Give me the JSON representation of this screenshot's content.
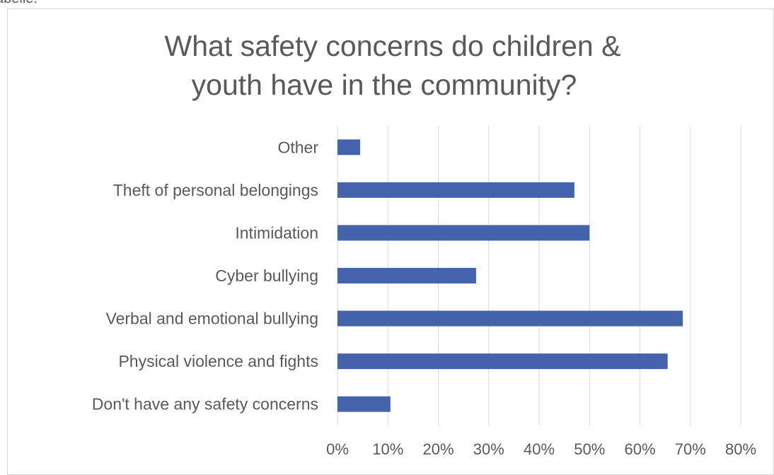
{
  "top_fragment": "abelle.",
  "chart_data": {
    "type": "bar",
    "orientation": "horizontal",
    "title_lines": [
      "What safety concerns do children &",
      "youth have in the community?"
    ],
    "categories": [
      "Other",
      "Theft of personal belongings",
      "Intimidation",
      "Cyber bullying",
      "Verbal and emotional bullying",
      "Physical violence and fights",
      "Don't have any safety concerns"
    ],
    "values": [
      4.5,
      47,
      50,
      27.5,
      68.5,
      65.5,
      10.5
    ],
    "xlim": [
      0,
      80
    ],
    "xticks": [
      "0%",
      "10%",
      "20%",
      "30%",
      "40%",
      "50%",
      "60%",
      "70%",
      "80%"
    ],
    "grid": true,
    "legend": "none",
    "bar_color": "#4563ad",
    "grid_color": "#d9d9d9",
    "text_color": "#595959"
  }
}
